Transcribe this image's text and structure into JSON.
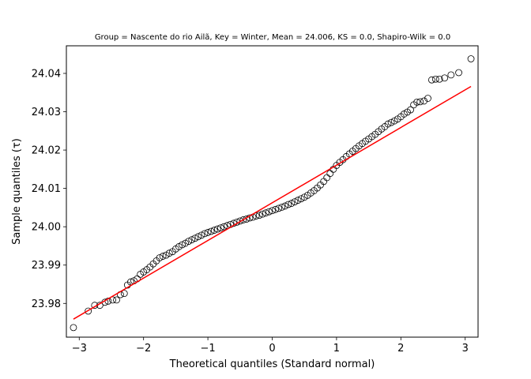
{
  "chart_data": {
    "type": "scatter",
    "title": "Group = Nascente do rio Ailã, Key = Winter, Mean = 24.006, KS = 0.0, Shapiro-Wilk = 0.0",
    "xlabel": "Theoretical quantiles (Standard normal)",
    "ylabel": "Sample quantiles (τ)",
    "xlim": [
      -3.2,
      3.2
    ],
    "ylim": [
      23.9712,
      24.0472
    ],
    "x_ticks": [
      -3,
      -2,
      -1,
      0,
      1,
      2,
      3
    ],
    "x_tick_labels": [
      "−3",
      "−2",
      "−1",
      "0",
      "1",
      "2",
      "3"
    ],
    "y_ticks": [
      23.98,
      23.99,
      24.0,
      24.01,
      24.02,
      24.03,
      24.04
    ],
    "y_tick_labels": [
      "23.98",
      "23.99",
      "24.00",
      "24.01",
      "24.02",
      "24.03",
      "24.04"
    ],
    "grid": false,
    "series": [
      {
        "kind": "points",
        "marker": "open-circle",
        "color": "#000000",
        "points": [
          [
            -3.09,
            23.9737
          ],
          [
            -2.86,
            23.978
          ],
          [
            -2.76,
            23.9795
          ],
          [
            -2.68,
            23.9795
          ],
          [
            -2.6,
            23.9803
          ],
          [
            -2.55,
            23.9806
          ],
          [
            -2.48,
            23.9809
          ],
          [
            -2.42,
            23.9809
          ],
          [
            -2.36,
            23.9823
          ],
          [
            -2.3,
            23.9826
          ],
          [
            -2.25,
            23.9848
          ],
          [
            -2.2,
            23.9856
          ],
          [
            -2.15,
            23.9859
          ],
          [
            -2.1,
            23.9864
          ],
          [
            -2.05,
            23.9876
          ],
          [
            -2.0,
            23.9882
          ],
          [
            -1.95,
            23.9888
          ],
          [
            -1.9,
            23.9895
          ],
          [
            -1.85,
            23.9903
          ],
          [
            -1.8,
            23.9911
          ],
          [
            -1.75,
            23.9919
          ],
          [
            -1.7,
            23.9923
          ],
          [
            -1.65,
            23.9926
          ],
          [
            -1.6,
            23.9931
          ],
          [
            -1.55,
            23.9935
          ],
          [
            -1.5,
            23.9942
          ],
          [
            -1.45,
            23.9948
          ],
          [
            -1.4,
            23.9953
          ],
          [
            -1.35,
            23.9957
          ],
          [
            -1.3,
            23.9962
          ],
          [
            -1.25,
            23.9966
          ],
          [
            -1.2,
            23.997
          ],
          [
            -1.15,
            23.9974
          ],
          [
            -1.1,
            23.9978
          ],
          [
            -1.05,
            23.9982
          ],
          [
            -1.0,
            23.9985
          ],
          [
            -0.95,
            23.9988
          ],
          [
            -0.9,
            23.9991
          ],
          [
            -0.85,
            23.9994
          ],
          [
            -0.8,
            23.9997
          ],
          [
            -0.75,
            24.0
          ],
          [
            -0.7,
            24.0003
          ],
          [
            -0.65,
            24.0006
          ],
          [
            -0.6,
            24.0009
          ],
          [
            -0.55,
            24.0012
          ],
          [
            -0.5,
            24.0015
          ],
          [
            -0.45,
            24.0018
          ],
          [
            -0.4,
            24.002
          ],
          [
            -0.35,
            24.0023
          ],
          [
            -0.3,
            24.0025
          ],
          [
            -0.25,
            24.0028
          ],
          [
            -0.2,
            24.003
          ],
          [
            -0.15,
            24.0033
          ],
          [
            -0.1,
            24.0036
          ],
          [
            -0.05,
            24.0039
          ],
          [
            0.0,
            24.0042
          ],
          [
            0.05,
            24.0045
          ],
          [
            0.1,
            24.0048
          ],
          [
            0.15,
            24.0051
          ],
          [
            0.2,
            24.0054
          ],
          [
            0.25,
            24.0058
          ],
          [
            0.3,
            24.0061
          ],
          [
            0.35,
            24.0065
          ],
          [
            0.4,
            24.0069
          ],
          [
            0.45,
            24.0073
          ],
          [
            0.5,
            24.0077
          ],
          [
            0.55,
            24.0082
          ],
          [
            0.6,
            24.0088
          ],
          [
            0.65,
            24.0094
          ],
          [
            0.7,
            24.0101
          ],
          [
            0.75,
            24.0109
          ],
          [
            0.8,
            24.0118
          ],
          [
            0.85,
            24.0128
          ],
          [
            0.9,
            24.0139
          ],
          [
            0.95,
            24.015
          ],
          [
            1.0,
            24.016
          ],
          [
            1.05,
            24.0168
          ],
          [
            1.1,
            24.0175
          ],
          [
            1.15,
            24.0183
          ],
          [
            1.2,
            24.019
          ],
          [
            1.25,
            24.0197
          ],
          [
            1.3,
            24.0204
          ],
          [
            1.35,
            24.0211
          ],
          [
            1.4,
            24.0217
          ],
          [
            1.45,
            24.0223
          ],
          [
            1.5,
            24.0229
          ],
          [
            1.55,
            24.0235
          ],
          [
            1.6,
            24.0241
          ],
          [
            1.65,
            24.0248
          ],
          [
            1.7,
            24.0255
          ],
          [
            1.75,
            24.0261
          ],
          [
            1.8,
            24.0268
          ],
          [
            1.85,
            24.0272
          ],
          [
            1.9,
            24.0276
          ],
          [
            1.95,
            24.0281
          ],
          [
            2.0,
            24.0287
          ],
          [
            2.05,
            24.0294
          ],
          [
            2.1,
            24.0299
          ],
          [
            2.15,
            24.0305
          ],
          [
            2.2,
            24.0318
          ],
          [
            2.25,
            24.0325
          ],
          [
            2.3,
            24.0326
          ],
          [
            2.36,
            24.0328
          ],
          [
            2.42,
            24.0335
          ],
          [
            2.48,
            24.0383
          ],
          [
            2.54,
            24.0385
          ],
          [
            2.6,
            24.0385
          ],
          [
            2.68,
            24.0388
          ],
          [
            2.78,
            24.0396
          ],
          [
            2.9,
            24.0402
          ],
          [
            3.09,
            24.0438
          ]
        ]
      },
      {
        "kind": "line",
        "color": "#ff0000",
        "points": [
          [
            -3.09,
            23.9759
          ],
          [
            3.09,
            24.0366
          ]
        ]
      }
    ]
  }
}
